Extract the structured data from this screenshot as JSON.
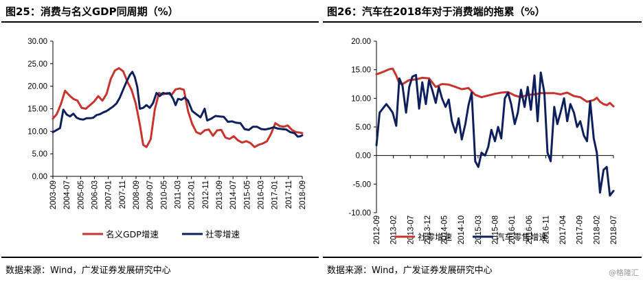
{
  "colors": {
    "red": "#c8332c",
    "navy": "#0d1f5c"
  },
  "watermark": "@格隆汇",
  "chart_data": [
    {
      "type": "line",
      "title": "图25：消费与名义GDP同周期（%）",
      "source": "数据来源：Wind，广发证券发展研究中心",
      "xlim": [
        2003.67,
        2018.67
      ],
      "ylim": [
        0,
        30
      ],
      "yticks": [
        0,
        5,
        10,
        15,
        20,
        25,
        30
      ],
      "ytick_labels": [
        "0.00",
        "5.00",
        "10.00",
        "15.00",
        "20.00",
        "25.00",
        "30.00"
      ],
      "xtick_labels": [
        "2003-09",
        "2004-07",
        "2005-05",
        "2006-03",
        "2007-01",
        "2007-11",
        "2008-09",
        "2009-07",
        "2010-05",
        "2011-03",
        "2012-01",
        "2012-11",
        "2013-09",
        "2014-07",
        "2015-05",
        "2016-03",
        "2017-01",
        "2017-11",
        "2018-09"
      ],
      "legend": {
        "position": "bottom"
      },
      "series": [
        {
          "name": "名义GDP增速",
          "color": "#c8332c",
          "points": [
            [
              2003.67,
              12.8
            ],
            [
              2003.9,
              13.8
            ],
            [
              2004.15,
              16.0
            ],
            [
              2004.4,
              19.0
            ],
            [
              2004.65,
              18.0
            ],
            [
              2004.9,
              17.2
            ],
            [
              2005.15,
              16.8
            ],
            [
              2005.4,
              15.2
            ],
            [
              2005.65,
              15.0
            ],
            [
              2005.9,
              15.8
            ],
            [
              2006.15,
              16.6
            ],
            [
              2006.4,
              17.8
            ],
            [
              2006.65,
              16.8
            ],
            [
              2006.9,
              18.3
            ],
            [
              2007.15,
              21.6
            ],
            [
              2007.4,
              23.5
            ],
            [
              2007.65,
              24.0
            ],
            [
              2007.9,
              23.3
            ],
            [
              2008.15,
              21.0
            ],
            [
              2008.4,
              19.2
            ],
            [
              2008.65,
              16.2
            ],
            [
              2008.9,
              11.5
            ],
            [
              2009.1,
              7.0
            ],
            [
              2009.3,
              6.5
            ],
            [
              2009.55,
              8.2
            ],
            [
              2009.8,
              14.8
            ],
            [
              2010.05,
              18.5
            ],
            [
              2010.3,
              18.2
            ],
            [
              2010.55,
              18.5
            ],
            [
              2010.8,
              18.0
            ],
            [
              2011.05,
              19.3
            ],
            [
              2011.3,
              19.5
            ],
            [
              2011.55,
              19.2
            ],
            [
              2011.8,
              14.5
            ],
            [
              2012.05,
              11.6
            ],
            [
              2012.3,
              9.8
            ],
            [
              2012.55,
              9.4
            ],
            [
              2012.8,
              10.2
            ],
            [
              2013.05,
              10.4
            ],
            [
              2013.3,
              9.0
            ],
            [
              2013.55,
              10.2
            ],
            [
              2013.8,
              10.3
            ],
            [
              2014.05,
              8.6
            ],
            [
              2014.3,
              8.3
            ],
            [
              2014.55,
              8.9
            ],
            [
              2014.8,
              8.0
            ],
            [
              2015.05,
              7.5
            ],
            [
              2015.3,
              7.8
            ],
            [
              2015.55,
              7.4
            ],
            [
              2015.8,
              6.5
            ],
            [
              2016.05,
              7.0
            ],
            [
              2016.3,
              7.3
            ],
            [
              2016.55,
              7.8
            ],
            [
              2016.8,
              9.5
            ],
            [
              2017.05,
              11.8
            ],
            [
              2017.3,
              11.2
            ],
            [
              2017.55,
              11.0
            ],
            [
              2017.8,
              11.3
            ],
            [
              2018.05,
              10.3
            ],
            [
              2018.3,
              9.8
            ],
            [
              2018.55,
              9.7
            ],
            [
              2018.67,
              9.6
            ]
          ]
        },
        {
          "name": "社零增速",
          "color": "#0d1f5c",
          "points": [
            [
              2003.67,
              9.8
            ],
            [
              2003.9,
              10.3
            ],
            [
              2004.1,
              10.7
            ],
            [
              2004.3,
              14.8
            ],
            [
              2004.5,
              13.7
            ],
            [
              2004.7,
              13.3
            ],
            [
              2004.9,
              13.9
            ],
            [
              2005.1,
              13.0
            ],
            [
              2005.3,
              12.7
            ],
            [
              2005.5,
              12.6
            ],
            [
              2005.7,
              12.9
            ],
            [
              2005.9,
              12.9
            ],
            [
              2006.1,
              13.0
            ],
            [
              2006.3,
              13.6
            ],
            [
              2006.5,
              13.8
            ],
            [
              2006.7,
              14.2
            ],
            [
              2006.9,
              14.5
            ],
            [
              2007.1,
              15.0
            ],
            [
              2007.3,
              15.5
            ],
            [
              2007.5,
              16.2
            ],
            [
              2007.7,
              17.5
            ],
            [
              2007.9,
              19.3
            ],
            [
              2008.1,
              21.0
            ],
            [
              2008.3,
              22.5
            ],
            [
              2008.45,
              23.2
            ],
            [
              2008.6,
              22.0
            ],
            [
              2008.75,
              19.8
            ],
            [
              2008.9,
              15.0
            ],
            [
              2009.1,
              15.2
            ],
            [
              2009.3,
              15.8
            ],
            [
              2009.5,
              15.2
            ],
            [
              2009.7,
              16.3
            ],
            [
              2009.9,
              18.5
            ],
            [
              2010.1,
              17.8
            ],
            [
              2010.3,
              18.5
            ],
            [
              2010.5,
              18.3
            ],
            [
              2010.7,
              18.5
            ],
            [
              2010.9,
              17.2
            ],
            [
              2011.05,
              15.8
            ],
            [
              2011.2,
              17.2
            ],
            [
              2011.4,
              17.0
            ],
            [
              2011.6,
              17.5
            ],
            [
              2011.8,
              16.8
            ],
            [
              2012.05,
              14.5
            ],
            [
              2012.3,
              13.8
            ],
            [
              2012.55,
              13.1
            ],
            [
              2012.8,
              15.0
            ],
            [
              2012.95,
              12.4
            ],
            [
              2013.2,
              12.8
            ],
            [
              2013.45,
              13.4
            ],
            [
              2013.7,
              13.3
            ],
            [
              2013.95,
              13.2
            ],
            [
              2014.2,
              12.1
            ],
            [
              2014.45,
              12.2
            ],
            [
              2014.7,
              11.9
            ],
            [
              2014.95,
              11.8
            ],
            [
              2015.2,
              10.5
            ],
            [
              2015.45,
              10.3
            ],
            [
              2015.7,
              11.0
            ],
            [
              2015.95,
              11.0
            ],
            [
              2016.2,
              10.5
            ],
            [
              2016.45,
              10.4
            ],
            [
              2016.7,
              10.6
            ],
            [
              2016.95,
              10.9
            ],
            [
              2017.2,
              10.6
            ],
            [
              2017.45,
              10.5
            ],
            [
              2017.7,
              10.4
            ],
            [
              2017.95,
              9.8
            ],
            [
              2018.2,
              9.6
            ],
            [
              2018.4,
              8.8
            ],
            [
              2018.55,
              8.9
            ],
            [
              2018.67,
              9.1
            ]
          ]
        }
      ]
    },
    {
      "type": "line",
      "title": "图26：汽车在2018年对于消费端的拖累（%）",
      "source": "数据来源：Wind，广发证券发展研究中心",
      "xlim": [
        2012.67,
        2018.67
      ],
      "ylim": [
        -10,
        20
      ],
      "yticks": [
        -10,
        -5,
        0,
        5,
        10,
        15,
        20
      ],
      "ytick_labels": [
        "-10.00",
        "-5.00",
        "0.00",
        "5.00",
        "10.00",
        "15.00",
        "20.00"
      ],
      "xtick_labels": [
        "2012-09",
        "2013-02",
        "2013-07",
        "2013-12",
        "2014-05",
        "2014-10",
        "2015-03",
        "2015-08",
        "2016-01",
        "2016-06",
        "2016-11",
        "2017-04",
        "2017-09",
        "2018-02",
        "2018-07"
      ],
      "legend": {
        "position": "bottom"
      },
      "series": [
        {
          "name": "社零增速",
          "color": "#c8332c",
          "points": [
            [
              2012.67,
              14.2
            ],
            [
              2012.83,
              14.6
            ],
            [
              2013.0,
              15.1
            ],
            [
              2013.08,
              15.2
            ],
            [
              2013.17,
              14.0
            ],
            [
              2013.25,
              12.6
            ],
            [
              2013.33,
              12.5
            ],
            [
              2013.5,
              13.2
            ],
            [
              2013.67,
              13.3
            ],
            [
              2013.83,
              13.6
            ],
            [
              2014.0,
              13.5
            ],
            [
              2014.17,
              12.0
            ],
            [
              2014.33,
              12.5
            ],
            [
              2014.5,
              12.4
            ],
            [
              2014.67,
              12.0
            ],
            [
              2014.83,
              11.6
            ],
            [
              2015.0,
              11.8
            ],
            [
              2015.17,
              10.6
            ],
            [
              2015.33,
              10.2
            ],
            [
              2015.5,
              10.5
            ],
            [
              2015.67,
              10.8
            ],
            [
              2015.83,
              11.0
            ],
            [
              2016.0,
              11.1
            ],
            [
              2016.17,
              10.5
            ],
            [
              2016.33,
              10.2
            ],
            [
              2016.5,
              10.6
            ],
            [
              2016.67,
              10.7
            ],
            [
              2016.83,
              10.9
            ],
            [
              2017.0,
              10.9
            ],
            [
              2017.17,
              10.9
            ],
            [
              2017.33,
              10.7
            ],
            [
              2017.5,
              11.0
            ],
            [
              2017.67,
              10.4
            ],
            [
              2017.83,
              10.2
            ],
            [
              2018.0,
              9.4
            ],
            [
              2018.17,
              9.7
            ],
            [
              2018.25,
              10.1
            ],
            [
              2018.33,
              9.4
            ],
            [
              2018.42,
              9.0
            ],
            [
              2018.5,
              8.8
            ],
            [
              2018.58,
              9.2
            ],
            [
              2018.67,
              8.6
            ]
          ]
        },
        {
          "name": "汽车零售增速",
          "color": "#0d1f5c",
          "points": [
            [
              2012.67,
              1.8
            ],
            [
              2012.75,
              7.5
            ],
            [
              2012.83,
              8.2
            ],
            [
              2012.92,
              9.0
            ],
            [
              2013.0,
              8.3
            ],
            [
              2013.08,
              7.5
            ],
            [
              2013.17,
              5.2
            ],
            [
              2013.25,
              13.5
            ],
            [
              2013.33,
              12.2
            ],
            [
              2013.42,
              7.5
            ],
            [
              2013.5,
              12.0
            ],
            [
              2013.58,
              13.8
            ],
            [
              2013.67,
              14.1
            ],
            [
              2013.75,
              8.2
            ],
            [
              2013.83,
              12.8
            ],
            [
              2013.92,
              9.0
            ],
            [
              2014.0,
              13.2
            ],
            [
              2014.08,
              11.5
            ],
            [
              2014.17,
              9.2
            ],
            [
              2014.25,
              12.0
            ],
            [
              2014.33,
              10.0
            ],
            [
              2014.42,
              8.5
            ],
            [
              2014.5,
              9.8
            ],
            [
              2014.58,
              6.0
            ],
            [
              2014.67,
              4.0
            ],
            [
              2014.75,
              6.5
            ],
            [
              2014.83,
              2.8
            ],
            [
              2014.92,
              5.5
            ],
            [
              2015.0,
              8.8
            ],
            [
              2015.08,
              11.0
            ],
            [
              2015.17,
              -1.0
            ],
            [
              2015.25,
              -2.0
            ],
            [
              2015.33,
              0.5
            ],
            [
              2015.42,
              0.0
            ],
            [
              2015.5,
              1.5
            ],
            [
              2015.58,
              4.5
            ],
            [
              2015.67,
              2.5
            ],
            [
              2015.75,
              5.0
            ],
            [
              2015.83,
              3.0
            ],
            [
              2015.92,
              10.0
            ],
            [
              2016.0,
              11.0
            ],
            [
              2016.08,
              9.0
            ],
            [
              2016.17,
              5.5
            ],
            [
              2016.25,
              7.5
            ],
            [
              2016.33,
              11.5
            ],
            [
              2016.42,
              8.5
            ],
            [
              2016.5,
              12.0
            ],
            [
              2016.58,
              8.0
            ],
            [
              2016.67,
              14.0
            ],
            [
              2016.75,
              6.0
            ],
            [
              2016.83,
              14.5
            ],
            [
              2016.92,
              11.0
            ],
            [
              2017.0,
              0.5
            ],
            [
              2017.08,
              -1.0
            ],
            [
              2017.17,
              8.5
            ],
            [
              2017.25,
              5.5
            ],
            [
              2017.33,
              7.5
            ],
            [
              2017.42,
              10.0
            ],
            [
              2017.5,
              6.0
            ],
            [
              2017.58,
              9.0
            ],
            [
              2017.67,
              7.5
            ],
            [
              2017.75,
              5.0
            ],
            [
              2017.83,
              6.0
            ],
            [
              2017.92,
              3.5
            ],
            [
              2018.0,
              2.5
            ],
            [
              2018.08,
              9.5
            ],
            [
              2018.17,
              3.0
            ],
            [
              2018.25,
              0.5
            ],
            [
              2018.33,
              -6.5
            ],
            [
              2018.42,
              -2.5
            ],
            [
              2018.5,
              -2.0
            ],
            [
              2018.58,
              -7.0
            ],
            [
              2018.67,
              -6.2
            ]
          ]
        }
      ]
    }
  ]
}
